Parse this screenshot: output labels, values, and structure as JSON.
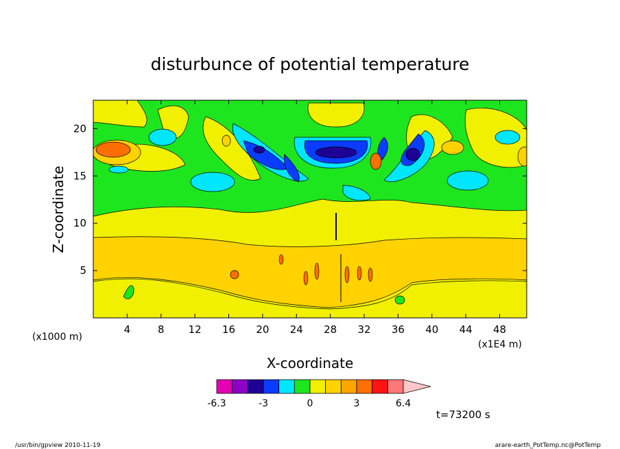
{
  "chart_data": {
    "type": "heatmap",
    "title": "disturbunce of potential temperature",
    "xlabel": "X-coordinate",
    "ylabel": "Z-coordinate",
    "x_scale_note": "(x1E4 m)",
    "y_scale_note": "(x1000 m)",
    "x_ticks": [
      "4",
      "8",
      "12",
      "16",
      "20",
      "24",
      "28",
      "32",
      "36",
      "40",
      "44",
      "48"
    ],
    "y_ticks": [
      "5",
      "10",
      "15",
      "20"
    ],
    "xlim": [
      0,
      51.2
    ],
    "ylim": [
      0,
      23
    ],
    "time_label": "t=73200 s",
    "colorbar": {
      "labels": [
        "-6.3",
        "-3",
        "0",
        "3",
        "6.4"
      ],
      "colors": [
        "#e600b4",
        "#8c00c8",
        "#1e0096",
        "#0a3cff",
        "#00e6ff",
        "#1ee61e",
        "#f0f000",
        "#ffd200",
        "#ffa500",
        "#ff6e00",
        "#ff1414",
        "#ff7878",
        "#ffc8c8"
      ]
    },
    "field_regions": [
      {
        "level": "green",
        "note": "upper layer background (z 10-23)"
      },
      {
        "level": "yellow",
        "note": "band z 8.5-11 and lower band z 0-4"
      },
      {
        "level": "orange",
        "note": "mid layer z 3.5-8.5"
      },
      {
        "level": "blue",
        "note": "wave packets near x 18-40, z 15-19"
      },
      {
        "level": "red",
        "note": "local maxima near x 2, z 17.5 and x 38, z 17"
      }
    ]
  },
  "footer": {
    "left": "/usr/bin/gpview   2010-11-19",
    "right": "arare-earth_PotTemp.nc@PotTemp"
  }
}
